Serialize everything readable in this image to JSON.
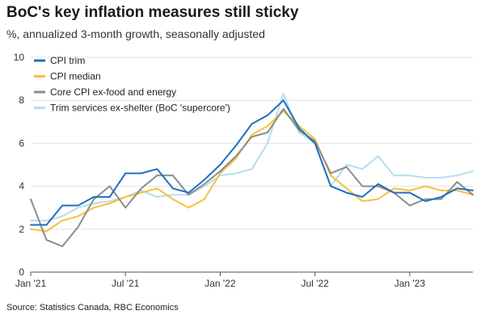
{
  "chart_data": {
    "type": "line",
    "title": "BoC's key inflation measures still sticky",
    "subtitle": "%, annualized 3-month growth, seasonally adjusted",
    "source": "Source: Statistics Canada, RBC Economics",
    "xlabel": "",
    "ylabel": "",
    "ylim": [
      0,
      10
    ],
    "yticks": [
      0,
      2,
      4,
      6,
      8,
      10
    ],
    "x": [
      "2021-01",
      "2021-02",
      "2021-03",
      "2021-04",
      "2021-05",
      "2021-06",
      "2021-07",
      "2021-08",
      "2021-09",
      "2021-10",
      "2021-11",
      "2021-12",
      "2022-01",
      "2022-02",
      "2022-03",
      "2022-04",
      "2022-05",
      "2022-06",
      "2022-07",
      "2022-08",
      "2022-09",
      "2022-10",
      "2022-11",
      "2022-12",
      "2023-01",
      "2023-02",
      "2023-03",
      "2023-04",
      "2023-05"
    ],
    "xticks": [
      {
        "index": 0,
        "label": "Jan '21"
      },
      {
        "index": 6,
        "label": "Jul '21"
      },
      {
        "index": 12,
        "label": "Jan '22"
      },
      {
        "index": 18,
        "label": "Jul '22"
      },
      {
        "index": 24,
        "label": "Jan '23"
      }
    ],
    "grid": true,
    "legend_position": "top-left",
    "series": [
      {
        "name": "CPI trim",
        "color": "#1f6fbf",
        "values": [
          2.2,
          2.2,
          3.1,
          3.1,
          3.5,
          3.5,
          4.6,
          4.6,
          4.8,
          3.9,
          3.7,
          4.3,
          5.0,
          5.9,
          6.9,
          7.3,
          8.0,
          6.7,
          6.0,
          4.0,
          3.7,
          3.5,
          4.1,
          3.7,
          3.7,
          3.3,
          3.5,
          3.9,
          3.8
        ]
      },
      {
        "name": "CPI median",
        "color": "#f5c23a",
        "values": [
          2.0,
          1.9,
          2.4,
          2.6,
          3.0,
          3.2,
          3.5,
          3.7,
          3.9,
          3.4,
          3.0,
          3.4,
          4.6,
          5.3,
          6.4,
          6.8,
          7.5,
          6.8,
          6.2,
          4.5,
          3.9,
          3.3,
          3.4,
          3.9,
          3.8,
          4.0,
          3.8,
          3.8,
          3.6
        ]
      },
      {
        "name": "Core CPI ex-food and energy",
        "color": "#8c8c8c",
        "values": [
          3.4,
          1.5,
          1.2,
          2.1,
          3.4,
          4.0,
          3.0,
          3.9,
          4.5,
          4.5,
          3.6,
          4.1,
          4.7,
          5.4,
          6.3,
          6.5,
          7.6,
          6.6,
          6.1,
          4.6,
          4.9,
          4.0,
          4.0,
          3.7,
          3.1,
          3.4,
          3.4,
          4.2,
          3.6
        ]
      },
      {
        "name": "Trim services ex-shelter (BoC 'supercore')",
        "color": "#b7dcf0",
        "values": [
          2.4,
          2.4,
          2.6,
          3.0,
          3.2,
          3.3,
          3.5,
          3.8,
          3.5,
          3.6,
          3.6,
          4.0,
          4.5,
          4.6,
          4.8,
          6.0,
          8.3,
          6.5,
          6.0,
          4.0,
          5.0,
          4.8,
          5.4,
          4.5,
          4.5,
          4.4,
          4.4,
          4.5,
          4.7
        ]
      }
    ]
  }
}
